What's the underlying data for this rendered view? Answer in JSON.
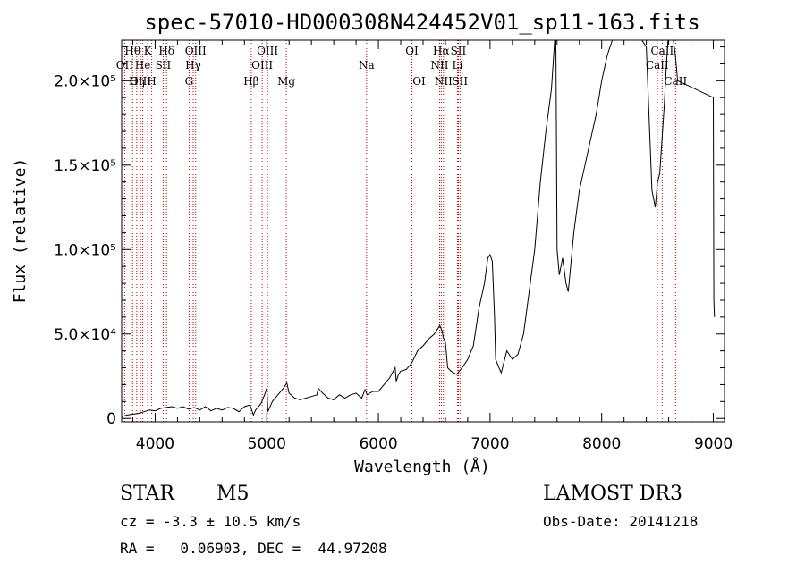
{
  "chart_data": {
    "type": "line",
    "title": "spec-57010-HD000308N424452V01_sp11-163.fits",
    "xlabel": "Wavelength (Å)",
    "ylabel": "Flux (relative)",
    "xlim": [
      3700,
      9100
    ],
    "ylim": [
      -2000,
      224000
    ],
    "x_ticks": [
      4000,
      5000,
      6000,
      7000,
      8000,
      9000
    ],
    "x_tick_labels": [
      "4000",
      "5000",
      "6000",
      "7000",
      "8000",
      "9000"
    ],
    "y_ticks": [
      0,
      50000,
      100000,
      150000,
      200000
    ],
    "y_tick_labels": [
      "0",
      "5.0×10⁴",
      "1.0×10⁵",
      "1.5×10⁵",
      "2.0×10⁵"
    ],
    "series": [
      {
        "name": "flux",
        "x": [
          3700,
          3750,
          3800,
          3850,
          3900,
          3950,
          4000,
          4050,
          4100,
          4150,
          4200,
          4250,
          4300,
          4350,
          4400,
          4450,
          4500,
          4550,
          4600,
          4650,
          4700,
          4750,
          4800,
          4850,
          4880,
          4900,
          4950,
          4980,
          5000,
          5010,
          5050,
          5100,
          5150,
          5180,
          5200,
          5250,
          5300,
          5350,
          5400,
          5450,
          5460,
          5500,
          5550,
          5600,
          5650,
          5700,
          5750,
          5800,
          5850,
          5880,
          5900,
          5950,
          6000,
          6050,
          6100,
          6150,
          6160,
          6180,
          6200,
          6250,
          6300,
          6350,
          6400,
          6450,
          6500,
          6550,
          6570,
          6580,
          6600,
          6620,
          6650,
          6700,
          6750,
          6800,
          6850,
          6900,
          6950,
          6980,
          7000,
          7020,
          7040,
          7050,
          7080,
          7100,
          7150,
          7200,
          7250,
          7300,
          7350,
          7400,
          7450,
          7500,
          7550,
          7580,
          7590,
          7600,
          7620,
          7650,
          7680,
          7700,
          7750,
          7800,
          7850,
          7900,
          7950,
          8000,
          8050,
          8100,
          8150,
          8200,
          8250,
          8300,
          8350,
          8400,
          8450,
          8480,
          8500,
          8520,
          8540,
          8560,
          8580,
          8600,
          8640,
          8660,
          8680,
          9000,
          9005,
          9010
        ],
        "y": [
          1000,
          2000,
          2500,
          3000,
          4000,
          5000,
          4500,
          6000,
          6500,
          7000,
          6000,
          7000,
          5500,
          6500,
          5000,
          7000,
          4500,
          6000,
          5000,
          6500,
          6000,
          4000,
          7000,
          8000,
          2000,
          5000,
          9000,
          14000,
          18000,
          4000,
          10000,
          14000,
          18000,
          21000,
          15000,
          12000,
          11000,
          12000,
          13000,
          14000,
          18000,
          15000,
          12000,
          11000,
          14000,
          12000,
          14000,
          15000,
          12000,
          17000,
          14000,
          16000,
          16000,
          20000,
          24000,
          30000,
          22000,
          26000,
          28000,
          29000,
          33000,
          40000,
          43000,
          47000,
          50000,
          55000,
          52000,
          48000,
          45000,
          30000,
          28000,
          26000,
          30000,
          35000,
          43000,
          65000,
          80000,
          95000,
          97000,
          93000,
          60000,
          35000,
          30000,
          27000,
          40000,
          35000,
          38000,
          50000,
          75000,
          100000,
          140000,
          170000,
          195000,
          225000,
          225000,
          100000,
          85000,
          95000,
          80000,
          75000,
          110000,
          135000,
          150000,
          165000,
          180000,
          200000,
          215000,
          225000,
          225000,
          225000,
          225000,
          225000,
          225000,
          220000,
          135000,
          125000,
          140000,
          145000,
          165000,
          185000,
          210000,
          230000,
          225000,
          215000,
          200000,
          190000,
          70000,
          60000
        ],
        "color": "#000000"
      }
    ],
    "line_markers": [
      {
        "label": "Hθ",
        "wavelength": 3798,
        "row": 1
      },
      {
        "label": "OII",
        "wavelength": 3727,
        "row": 2
      },
      {
        "label": "OIII",
        "wavelength": 3869,
        "row": 3
      },
      {
        "label": "He",
        "wavelength": 3889,
        "row": 2
      },
      {
        "label": "Hη",
        "wavelength": 3835,
        "row": 3
      },
      {
        "label": "K",
        "wavelength": 3934,
        "row": 1
      },
      {
        "label": "H",
        "wavelength": 3969,
        "row": 3
      },
      {
        "label": "SII",
        "wavelength": 4072,
        "row": 2
      },
      {
        "label": "Hδ",
        "wavelength": 4102,
        "row": 1
      },
      {
        "label": "OIII",
        "wavelength": 4363,
        "row": 1
      },
      {
        "label": "Hγ",
        "wavelength": 4341,
        "row": 2
      },
      {
        "label": "G",
        "wavelength": 4304,
        "row": 3
      },
      {
        "label": "OIII",
        "wavelength": 5007,
        "row": 1
      },
      {
        "label": "OIII",
        "wavelength": 4959,
        "row": 2
      },
      {
        "label": "Hβ",
        "wavelength": 4861,
        "row": 3
      },
      {
        "label": "Mg",
        "wavelength": 5175,
        "row": 3
      },
      {
        "label": "Na",
        "wavelength": 5894,
        "row": 2
      },
      {
        "label": "OI",
        "wavelength": 6300,
        "row": 1
      },
      {
        "label": "OI",
        "wavelength": 6364,
        "row": 3
      },
      {
        "label": "Hα",
        "wavelength": 6563,
        "row": 1
      },
      {
        "label": "SII",
        "wavelength": 6716,
        "row": 1
      },
      {
        "label": "NII",
        "wavelength": 6548,
        "row": 2
      },
      {
        "label": "Li",
        "wavelength": 6708,
        "row": 2
      },
      {
        "label": "NII",
        "wavelength": 6583,
        "row": 3
      },
      {
        "label": "SII",
        "wavelength": 6731,
        "row": 3
      },
      {
        "label": "CaII",
        "wavelength": 8542,
        "row": 1
      },
      {
        "label": "CaII",
        "wavelength": 8498,
        "row": 2
      },
      {
        "label": "CaII",
        "wavelength": 8662,
        "row": 3
      }
    ],
    "marker_color": "#cc0000",
    "grid": false
  },
  "info": {
    "object_type": "STAR",
    "subclass": "M5",
    "survey": "LAMOST DR3",
    "cz": "cz = -3.3 ± 10.5 km/s",
    "obs_date": "Obs-Date: 20141218",
    "coords": "RA =   0.06903, DEC =  44.97208"
  }
}
